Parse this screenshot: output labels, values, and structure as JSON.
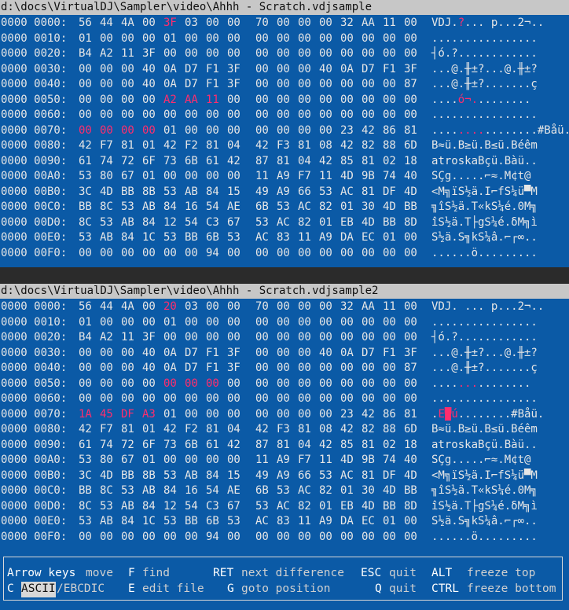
{
  "panes": [
    {
      "title": "d:\\docs\\VirtualDJ\\Sampler\\video\\Ahhh - Scratch.vdjsample",
      "rows": [
        {
          "off": "0000 0000:",
          "hex": [
            "56",
            "44",
            "4A",
            "00",
            "3F",
            "03",
            "00",
            "00",
            "70",
            "00",
            "00",
            "00",
            "32",
            "AA",
            "11",
            "00"
          ],
          "diff": [
            4
          ],
          "ascii": [
            [
              "VDJ.",
              ""
            ],
            [
              "?",
              "d"
            ],
            [
              "... p...2¬..",
              ""
            ]
          ]
        },
        {
          "off": "0000 0010:",
          "hex": [
            "01",
            "00",
            "00",
            "00",
            "01",
            "00",
            "00",
            "00",
            "00",
            "00",
            "00",
            "00",
            "00",
            "00",
            "00",
            "00"
          ],
          "diff": [],
          "ascii": [
            [
              "................",
              ""
            ]
          ]
        },
        {
          "off": "0000 0020:",
          "hex": [
            "B4",
            "A2",
            "11",
            "3F",
            "00",
            "00",
            "00",
            "00",
            "00",
            "00",
            "00",
            "00",
            "00",
            "00",
            "00",
            "00"
          ],
          "diff": [],
          "ascii": [
            [
              "┤ó.?............",
              ""
            ]
          ]
        },
        {
          "off": "0000 0030:",
          "hex": [
            "00",
            "00",
            "00",
            "40",
            "0A",
            "D7",
            "F1",
            "3F",
            "00",
            "00",
            "00",
            "40",
            "0A",
            "D7",
            "F1",
            "3F"
          ],
          "diff": [],
          "ascii": [
            [
              "...@.╫±?...@.╫±?",
              ""
            ]
          ]
        },
        {
          "off": "0000 0040:",
          "hex": [
            "00",
            "00",
            "00",
            "40",
            "0A",
            "D7",
            "F1",
            "3F",
            "00",
            "00",
            "00",
            "00",
            "00",
            "00",
            "00",
            "87"
          ],
          "diff": [],
          "ascii": [
            [
              "...@.╫±?.......ç",
              ""
            ]
          ]
        },
        {
          "off": "0000 0050:",
          "hex": [
            "00",
            "00",
            "00",
            "00",
            "A2",
            "AA",
            "11",
            "00",
            "00",
            "00",
            "00",
            "00",
            "00",
            "00",
            "00",
            "00"
          ],
          "diff": [
            4,
            5,
            6
          ],
          "ascii": [
            [
              "....",
              ""
            ],
            [
              "ó¬.",
              "d"
            ],
            [
              "........",
              ""
            ]
          ]
        },
        {
          "off": "0000 0060:",
          "hex": [
            "00",
            "00",
            "00",
            "00",
            "00",
            "00",
            "00",
            "00",
            "00",
            "00",
            "00",
            "00",
            "00",
            "00",
            "00",
            "00"
          ],
          "diff": [],
          "ascii": [
            [
              "................",
              ""
            ]
          ]
        },
        {
          "off": "0000 0070:",
          "hex": [
            "00",
            "00",
            "00",
            "00",
            "01",
            "00",
            "00",
            "00",
            "00",
            "00",
            "00",
            "00",
            "23",
            "42",
            "86",
            "81"
          ],
          "diff": [
            0,
            1,
            2,
            3
          ],
          "ascii": [
            [
              "....",
              ""
            ],
            [
              "....",
              "d"
            ],
            [
              "........#Båü.",
              ""
            ]
          ]
        },
        {
          "off": "0000 0080:",
          "hex": [
            "42",
            "F7",
            "81",
            "01",
            "42",
            "F2",
            "81",
            "04",
            "42",
            "F3",
            "81",
            "08",
            "42",
            "82",
            "88",
            "6D"
          ],
          "diff": [],
          "ascii": [
            [
              "B≈ü.B≥ü.B≤ü.Béêm",
              ""
            ]
          ]
        },
        {
          "off": "0000 0090:",
          "hex": [
            "61",
            "74",
            "72",
            "6F",
            "73",
            "6B",
            "61",
            "42",
            "87",
            "81",
            "04",
            "42",
            "85",
            "81",
            "02",
            "18"
          ],
          "diff": [],
          "ascii": [
            [
              "atroskaBçü.Bàü..",
              ""
            ]
          ]
        },
        {
          "off": "0000 00A0:",
          "hex": [
            "53",
            "80",
            "67",
            "01",
            "00",
            "00",
            "00",
            "00",
            "11",
            "A9",
            "F7",
            "11",
            "4D",
            "9B",
            "74",
            "40"
          ],
          "diff": [],
          "ascii": [
            [
              "SÇg.....⌐≈.M¢t@",
              ""
            ]
          ]
        },
        {
          "off": "0000 00B0:",
          "hex": [
            "3C",
            "4D",
            "BB",
            "8B",
            "53",
            "AB",
            "84",
            "15",
            "49",
            "A9",
            "66",
            "53",
            "AC",
            "81",
            "DF",
            "4D"
          ],
          "diff": [],
          "ascii": [
            [
              "<M╗ïS½ä.I⌐fS¼ü▀M",
              ""
            ]
          ]
        },
        {
          "off": "0000 00C0:",
          "hex": [
            "BB",
            "8C",
            "53",
            "AB",
            "84",
            "16",
            "54",
            "AE",
            "6B",
            "53",
            "AC",
            "82",
            "01",
            "30",
            "4D",
            "BB"
          ],
          "diff": [],
          "ascii": [
            [
              "╗îS½ä.T«kS¼é.0M╗",
              ""
            ]
          ]
        },
        {
          "off": "0000 00D0:",
          "hex": [
            "8C",
            "53",
            "AB",
            "84",
            "12",
            "54",
            "C3",
            "67",
            "53",
            "AC",
            "82",
            "01",
            "EB",
            "4D",
            "BB",
            "8D"
          ],
          "diff": [],
          "ascii": [
            [
              "îS½ä.T├gS¼é.δM╗ì",
              ""
            ]
          ]
        },
        {
          "off": "0000 00E0:",
          "hex": [
            "53",
            "AB",
            "84",
            "1C",
            "53",
            "BB",
            "6B",
            "53",
            "AC",
            "83",
            "11",
            "A9",
            "DA",
            "EC",
            "01",
            "00"
          ],
          "diff": [],
          "ascii": [
            [
              "S½ä.S╗kS¼â.⌐┌∞..",
              ""
            ]
          ]
        },
        {
          "off": "0000 00F0:",
          "hex": [
            "00",
            "00",
            "00",
            "00",
            "00",
            "00",
            "94",
            "00",
            "00",
            "00",
            "00",
            "00",
            "00",
            "00",
            "00",
            "00"
          ],
          "diff": [],
          "ascii": [
            [
              "......ö.........",
              ""
            ]
          ]
        }
      ]
    },
    {
      "title": "d:\\docs\\VirtualDJ\\Sampler\\video\\Ahhh - Scratch.vdjsample2",
      "rows": [
        {
          "off": "0000 0000:",
          "hex": [
            "56",
            "44",
            "4A",
            "00",
            "20",
            "03",
            "00",
            "00",
            "70",
            "00",
            "00",
            "00",
            "32",
            "AA",
            "11",
            "00"
          ],
          "diff": [
            4
          ],
          "ascii": [
            [
              "VDJ.",
              ""
            ],
            [
              " ",
              "d"
            ],
            [
              "... p...2¬..",
              ""
            ]
          ]
        },
        {
          "off": "0000 0010:",
          "hex": [
            "01",
            "00",
            "00",
            "00",
            "01",
            "00",
            "00",
            "00",
            "00",
            "00",
            "00",
            "00",
            "00",
            "00",
            "00",
            "00"
          ],
          "diff": [],
          "ascii": [
            [
              "................",
              ""
            ]
          ]
        },
        {
          "off": "0000 0020:",
          "hex": [
            "B4",
            "A2",
            "11",
            "3F",
            "00",
            "00",
            "00",
            "00",
            "00",
            "00",
            "00",
            "00",
            "00",
            "00",
            "00",
            "00"
          ],
          "diff": [],
          "ascii": [
            [
              "┤ó.?............",
              ""
            ]
          ]
        },
        {
          "off": "0000 0030:",
          "hex": [
            "00",
            "00",
            "00",
            "40",
            "0A",
            "D7",
            "F1",
            "3F",
            "00",
            "00",
            "00",
            "40",
            "0A",
            "D7",
            "F1",
            "3F"
          ],
          "diff": [],
          "ascii": [
            [
              "...@.╫±?...@.╫±?",
              ""
            ]
          ]
        },
        {
          "off": "0000 0040:",
          "hex": [
            "00",
            "00",
            "00",
            "40",
            "0A",
            "D7",
            "F1",
            "3F",
            "00",
            "00",
            "00",
            "00",
            "00",
            "00",
            "00",
            "87"
          ],
          "diff": [],
          "ascii": [
            [
              "...@.╫±?.......ç",
              ""
            ]
          ]
        },
        {
          "off": "0000 0050:",
          "hex": [
            "00",
            "00",
            "00",
            "00",
            "00",
            "00",
            "00",
            "00",
            "00",
            "00",
            "00",
            "00",
            "00",
            "00",
            "00",
            "00"
          ],
          "diff": [
            4,
            5,
            6
          ],
          "ascii": [
            [
              "....",
              ""
            ],
            [
              "...",
              "d"
            ],
            [
              "........",
              ""
            ]
          ]
        },
        {
          "off": "0000 0060:",
          "hex": [
            "00",
            "00",
            "00",
            "00",
            "00",
            "00",
            "00",
            "00",
            "00",
            "00",
            "00",
            "00",
            "00",
            "00",
            "00",
            "00"
          ],
          "diff": [],
          "ascii": [
            [
              "................",
              ""
            ]
          ]
        },
        {
          "off": "0000 0070:",
          "hex": [
            "1A",
            "45",
            "DF",
            "A3",
            "01",
            "00",
            "00",
            "00",
            "00",
            "00",
            "00",
            "00",
            "23",
            "42",
            "86",
            "81"
          ],
          "diff": [
            0,
            1,
            2,
            3
          ],
          "ascii": [
            [
              ".",
              ""
            ],
            [
              "E",
              "d"
            ],
            [
              "▀",
              "c"
            ],
            [
              "ú",
              "d"
            ],
            [
              "........#Båü.",
              ""
            ]
          ]
        },
        {
          "off": "0000 0080:",
          "hex": [
            "42",
            "F7",
            "81",
            "01",
            "42",
            "F2",
            "81",
            "04",
            "42",
            "F3",
            "81",
            "08",
            "42",
            "82",
            "88",
            "6D"
          ],
          "diff": [],
          "ascii": [
            [
              "B≈ü.B≥ü.B≤ü.Béêm",
              ""
            ]
          ]
        },
        {
          "off": "0000 0090:",
          "hex": [
            "61",
            "74",
            "72",
            "6F",
            "73",
            "6B",
            "61",
            "42",
            "87",
            "81",
            "04",
            "42",
            "85",
            "81",
            "02",
            "18"
          ],
          "diff": [],
          "ascii": [
            [
              "atroskaBçü.Bàü..",
              ""
            ]
          ]
        },
        {
          "off": "0000 00A0:",
          "hex": [
            "53",
            "80",
            "67",
            "01",
            "00",
            "00",
            "00",
            "00",
            "11",
            "A9",
            "F7",
            "11",
            "4D",
            "9B",
            "74",
            "40"
          ],
          "diff": [],
          "ascii": [
            [
              "SÇg.....⌐≈.M¢t@",
              ""
            ]
          ]
        },
        {
          "off": "0000 00B0:",
          "hex": [
            "3C",
            "4D",
            "BB",
            "8B",
            "53",
            "AB",
            "84",
            "15",
            "49",
            "A9",
            "66",
            "53",
            "AC",
            "81",
            "DF",
            "4D"
          ],
          "diff": [],
          "ascii": [
            [
              "<M╗ïS½ä.I⌐fS¼ü▀M",
              ""
            ]
          ]
        },
        {
          "off": "0000 00C0:",
          "hex": [
            "BB",
            "8C",
            "53",
            "AB",
            "84",
            "16",
            "54",
            "AE",
            "6B",
            "53",
            "AC",
            "82",
            "01",
            "30",
            "4D",
            "BB"
          ],
          "diff": [],
          "ascii": [
            [
              "╗îS½ä.T«kS¼é.0M╗",
              ""
            ]
          ]
        },
        {
          "off": "0000 00D0:",
          "hex": [
            "8C",
            "53",
            "AB",
            "84",
            "12",
            "54",
            "C3",
            "67",
            "53",
            "AC",
            "82",
            "01",
            "EB",
            "4D",
            "BB",
            "8D"
          ],
          "diff": [],
          "ascii": [
            [
              "îS½ä.T├gS¼é.δM╗ì",
              ""
            ]
          ]
        },
        {
          "off": "0000 00E0:",
          "hex": [
            "53",
            "AB",
            "84",
            "1C",
            "53",
            "BB",
            "6B",
            "53",
            "AC",
            "83",
            "11",
            "A9",
            "DA",
            "EC",
            "01",
            "00"
          ],
          "diff": [],
          "ascii": [
            [
              "S½ä.S╗kS¼â.⌐┌∞..",
              ""
            ]
          ]
        },
        {
          "off": "0000 00F0:",
          "hex": [
            "00",
            "00",
            "00",
            "00",
            "00",
            "00",
            "94",
            "00",
            "00",
            "00",
            "00",
            "00",
            "00",
            "00",
            "00",
            "00"
          ],
          "diff": [],
          "ascii": [
            [
              "......ö.........",
              ""
            ]
          ]
        }
      ]
    }
  ],
  "footer": {
    "row1": [
      {
        "key": "Arrow keys",
        "label": "move"
      },
      {
        "key": "F",
        "label": "find"
      },
      {
        "key": "RET",
        "label": "next difference"
      },
      {
        "key": "ESC",
        "label": "quit"
      },
      {
        "key": "ALT",
        "label": "freeze top"
      }
    ],
    "row2": [
      {
        "key": "C",
        "mode_selected": "ASCII",
        "mode_other": "/EBCDIC"
      },
      {
        "key": "E",
        "label": "edit file"
      },
      {
        "key": "G",
        "label": "goto position"
      },
      {
        "key": "Q",
        "label": "quit"
      },
      {
        "key": "CTRL",
        "label": "freeze bottom"
      }
    ]
  },
  "colors": {
    "background": "#0b5aa6",
    "diff": "#ff2d6e",
    "title_bar": "#c7c7c7"
  }
}
